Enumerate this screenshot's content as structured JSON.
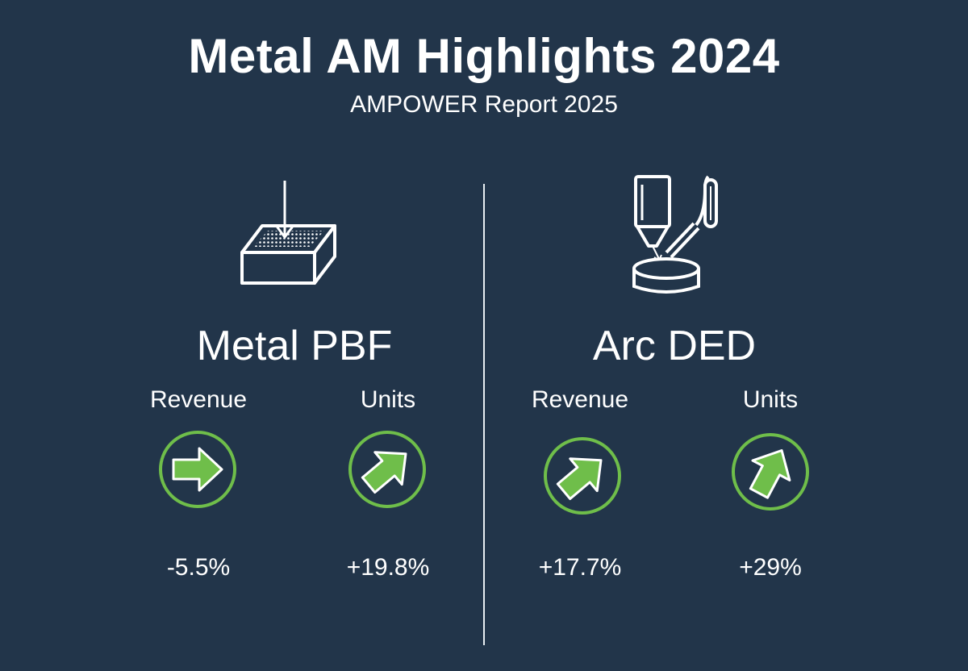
{
  "header": {
    "title": "Metal AM Highlights 2024",
    "subtitle": "AMPOWER Report 2025"
  },
  "colors": {
    "background": "#22354a",
    "text": "#ffffff",
    "trend_green": "#6fbe4a"
  },
  "panels": [
    {
      "name": "Metal PBF",
      "icon": "powder-bed-fusion-icon",
      "metrics": [
        {
          "label": "Revenue",
          "value": "-5.5%",
          "trend_icon": "arrow-right-icon"
        },
        {
          "label": "Units",
          "value": "+19.8%",
          "trend_icon": "arrow-up-right-icon"
        }
      ]
    },
    {
      "name": "Arc DED",
      "icon": "arc-directed-energy-deposition-icon",
      "metrics": [
        {
          "label": "Revenue",
          "value": "+17.7%",
          "trend_icon": "arrow-up-right-icon"
        },
        {
          "label": "Units",
          "value": "+29%",
          "trend_icon": "arrow-up-steep-icon"
        }
      ]
    }
  ]
}
